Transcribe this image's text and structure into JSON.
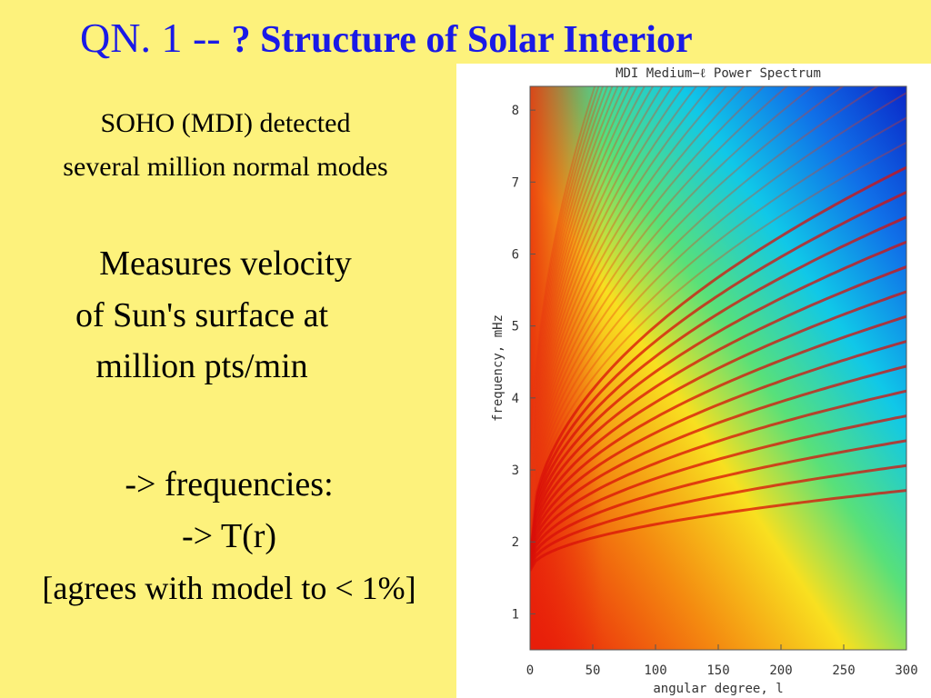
{
  "title": {
    "prefix": "QN. 1 --",
    "main": "? Structure of Solar Interior"
  },
  "lines": [
    {
      "text": "SOHO (MDI) detected"
    },
    {
      "text": "several million normal modes"
    },
    {
      "text": "Measures velocity"
    },
    {
      "text": "of Sun's surface at"
    },
    {
      "text": "million pts/min"
    },
    {
      "text": "-> frequencies:"
    },
    {
      "text": "-> T(r)"
    },
    {
      "text": "[agrees with model to < 1%]"
    }
  ],
  "figure": {
    "title": "MDI Medium−ℓ Power Spectrum",
    "x_label": "angular degree, l",
    "y_label": "frequency, mHz",
    "xlim": [
      0,
      300
    ],
    "ylim": [
      0.5,
      8.33
    ],
    "xticks": [
      0,
      50,
      100,
      150,
      200,
      250,
      300
    ],
    "yticks": [
      1,
      2,
      3,
      4,
      5,
      6,
      7,
      8
    ]
  }
}
